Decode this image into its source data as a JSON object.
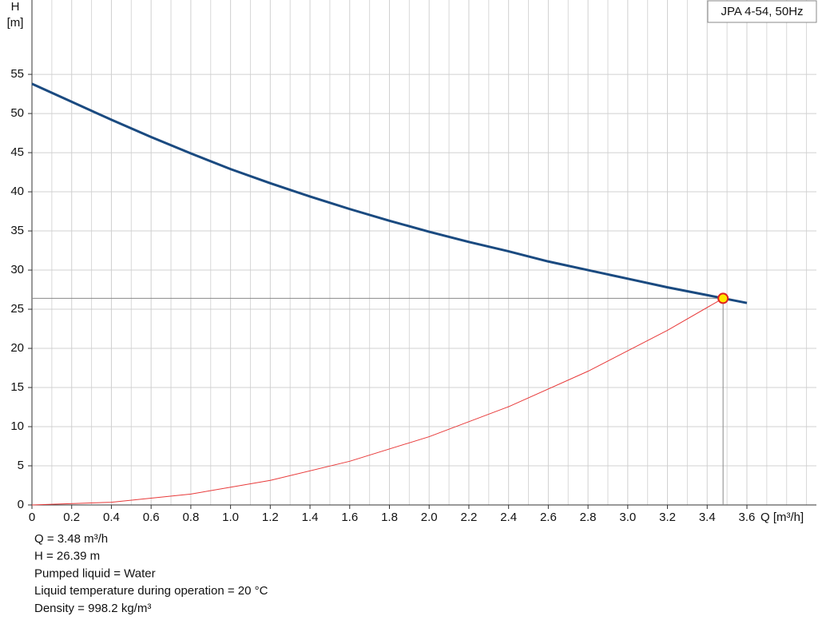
{
  "chart_data": {
    "type": "line",
    "legend_box": "JPA 4-54, 50Hz",
    "y_label": [
      "H",
      "[m]"
    ],
    "x_label": "Q [m³/h]",
    "xlim": [
      0,
      3.95
    ],
    "ylim": [
      0,
      64.5
    ],
    "xticks": [
      0,
      0.2,
      0.4,
      0.6,
      0.8,
      {
        "value": 1,
        "label": "1.0"
      },
      1.2,
      1.4,
      1.6,
      1.8,
      {
        "value": 2,
        "label": "2.0"
      },
      2.2,
      2.4,
      2.6,
      2.8,
      {
        "value": 3,
        "label": "3.0"
      },
      3.2,
      3.4,
      3.6
    ],
    "yticks": [
      0,
      5,
      10,
      15,
      20,
      25,
      30,
      35,
      40,
      45,
      50,
      55
    ],
    "grid": true,
    "x_minor_grid": true,
    "series": [
      {
        "color": "#1a4a80",
        "width": 3,
        "x": [
          0,
          0.2,
          0.4,
          0.6,
          0.8,
          1.0,
          1.2,
          1.4,
          1.6,
          1.8,
          2.0,
          2.2,
          2.4,
          2.6,
          2.8,
          3.0,
          3.2,
          3.4,
          3.6
        ],
        "values": [
          53.8,
          51.5,
          49.2,
          47.0,
          44.9,
          42.9,
          41.1,
          39.4,
          37.8,
          36.3,
          34.9,
          33.6,
          32.4,
          31.1,
          30.0,
          28.9,
          27.8,
          26.8,
          25.8
        ]
      },
      {
        "color": "#e83a3a",
        "width": 1,
        "x": [
          0,
          0.4,
          0.8,
          1.2,
          1.6,
          2.0,
          2.4,
          2.8,
          3.2,
          3.48
        ],
        "values": [
          0,
          0.35,
          1.39,
          3.14,
          5.58,
          8.72,
          12.55,
          17.08,
          22.31,
          26.39
        ]
      }
    ],
    "operating_point": {
      "x": 3.48,
      "y": 26.39
    },
    "info": [
      "Q = 3.48 m³/h",
      "H = 26.39 m",
      "Pumped liquid = Water",
      "Liquid temperature during operation = 20 °C",
      "Density = 998.2 kg/m³"
    ]
  }
}
